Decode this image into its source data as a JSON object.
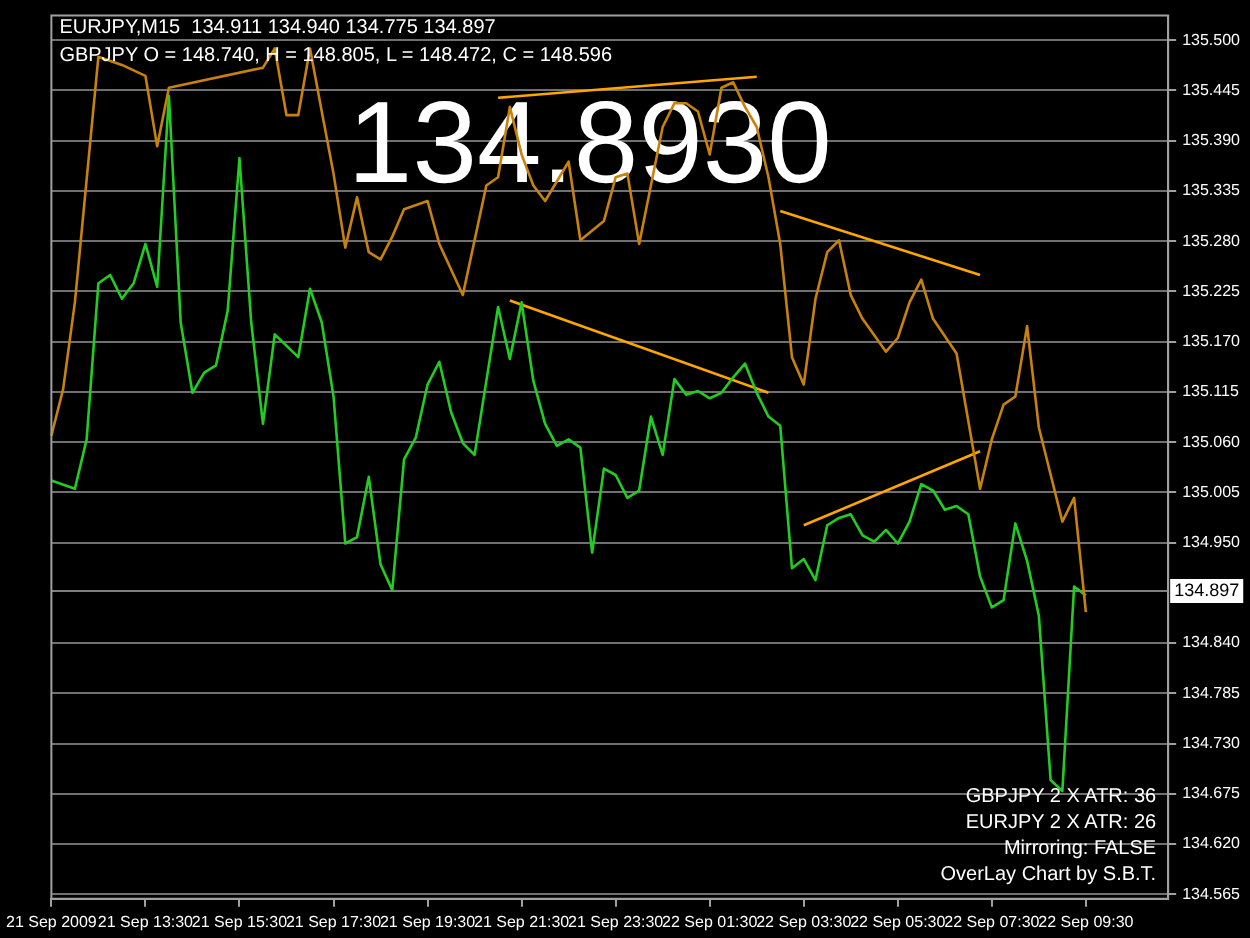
{
  "chart_data": {
    "type": "line",
    "ylim": [
      134.56,
      135.527
    ],
    "categories": [
      "21 Sep 2009",
      null,
      null,
      null,
      null,
      null,
      null,
      null,
      "21 Sep 13:30",
      null,
      null,
      null,
      null,
      null,
      null,
      null,
      "21 Sep 15:30",
      null,
      null,
      null,
      null,
      null,
      null,
      null,
      "21 Sep 17:30",
      null,
      null,
      null,
      null,
      null,
      null,
      null,
      "21 Sep 19:30",
      null,
      null,
      null,
      null,
      null,
      null,
      null,
      "21 Sep 21:30",
      null,
      null,
      null,
      null,
      null,
      null,
      null,
      "21 Sep 23:30",
      null,
      null,
      null,
      null,
      null,
      null,
      null,
      "22 Sep 01:30",
      null,
      null,
      null,
      null,
      null,
      null,
      null,
      "22 Sep 03:30",
      null,
      null,
      null,
      null,
      null,
      null,
      null,
      "22 Sep 05:30",
      null,
      null,
      null,
      null,
      null,
      null,
      null,
      "22 Sep 07:30",
      null,
      null,
      null,
      null,
      null,
      null,
      null,
      "22 Sep 09:30",
      null,
      null,
      null,
      null,
      null,
      null,
      null
    ],
    "yticks": [
      134.565,
      {
        "value": 134.62,
        "label": "134.620"
      },
      134.675,
      {
        "value": 134.73,
        "label": "134.730"
      },
      134.785,
      {
        "value": 134.84,
        "label": "134.840"
      },
      {
        "value": 134.95,
        "label": "134.950"
      },
      135.005,
      {
        "value": 135.06,
        "label": "135.060"
      },
      135.115,
      {
        "value": 135.17,
        "label": "135.170"
      },
      135.225,
      {
        "value": 135.28,
        "label": "135.280"
      },
      135.335,
      {
        "value": 135.39,
        "label": "135.390"
      },
      135.445,
      {
        "value": 135.5,
        "label": "135.500"
      }
    ],
    "grid": "y",
    "legend": false,
    "series": [
      {
        "color": "#c8820a",
        "values": [
          135.067,
          135.118,
          135.213,
          null,
          135.482,
          null,
          135.473,
          null,
          135.461,
          135.384,
          135.448,
          null,
          null,
          null,
          null,
          null,
          null,
          null,
          135.47,
          135.491,
          135.418,
          135.418,
          135.491,
          135.422,
          135.354,
          135.273,
          135.328,
          135.268,
          135.26,
          135.285,
          135.315,
          null,
          135.324,
          135.277,
          null,
          135.221,
          null,
          135.341,
          135.35,
          135.427,
          135.375,
          135.341,
          135.324,
          null,
          135.367,
          135.281,
          null,
          135.302,
          135.35,
          135.354,
          135.277,
          135.341,
          135.405,
          135.431,
          135.431,
          135.422,
          135.375,
          135.448,
          135.454,
          135.427,
          135.405,
          135.35,
          135.277,
          135.153,
          135.123,
          135.217,
          135.268,
          135.281,
          135.221,
          135.195,
          null,
          135.159,
          135.174,
          135.213,
          135.238,
          135.195,
          null,
          135.157,
          null,
          135.009,
          135.063,
          135.101,
          135.11,
          135.187,
          135.076,
          null,
          134.973,
          134.999,
          134.874,
          null,
          null,
          null,
          null,
          null,
          null,
          null
        ]
      },
      {
        "color": "#22cc22",
        "values": [
          135.018,
          null,
          135.009,
          135.063,
          135.234,
          135.243,
          135.217,
          135.234,
          135.277,
          135.23,
          135.439,
          135.191,
          135.114,
          135.136,
          135.144,
          135.204,
          135.371,
          135.191,
          135.08,
          135.178,
          null,
          135.153,
          135.228,
          135.191,
          135.11,
          134.949,
          134.956,
          135.022,
          134.926,
          134.898,
          135.041,
          135.065,
          135.123,
          135.148,
          135.093,
          135.059,
          135.046,
          135.127,
          135.208,
          135.151,
          135.213,
          135.127,
          135.08,
          135.056,
          135.063,
          135.054,
          134.939,
          135.031,
          135.024,
          134.999,
          135.007,
          135.088,
          135.046,
          135.129,
          135.112,
          135.116,
          135.108,
          135.114,
          135.131,
          135.146,
          135.114,
          135.088,
          135.078,
          134.922,
          134.932,
          134.909,
          134.969,
          134.977,
          134.981,
          134.958,
          134.951,
          134.964,
          134.949,
          134.973,
          135.014,
          135.007,
          134.986,
          134.99,
          134.981,
          134.913,
          134.879,
          134.887,
          134.971,
          134.93,
          134.87,
          134.69,
          134.678,
          134.902,
          134.892,
          null,
          null,
          null,
          null,
          null,
          null,
          null
        ]
      },
      {
        "type": "line",
        "color": "#ffa500",
        "values": [
          null,
          null,
          null,
          null,
          null,
          null,
          null,
          null,
          null,
          null,
          null,
          null,
          null,
          null,
          null,
          null,
          null,
          null,
          null,
          null,
          null,
          null,
          null,
          null,
          null,
          null,
          null,
          null,
          null,
          null,
          null,
          null,
          null,
          null,
          null,
          null,
          null,
          null,
          135.437,
          null,
          null,
          null,
          null,
          null,
          null,
          null,
          null,
          null,
          null,
          null,
          null,
          null,
          null,
          null,
          null,
          null,
          null,
          null,
          null,
          null,
          135.46,
          null,
          null,
          null,
          null,
          null,
          null,
          null,
          null,
          null,
          null,
          null,
          null,
          null,
          null,
          null,
          null,
          null,
          null,
          null,
          null,
          null,
          null,
          null,
          null,
          null,
          null,
          null,
          null,
          null,
          null,
          null,
          null,
          null,
          null,
          null
        ]
      },
      {
        "type": "line",
        "color": "#ffa500",
        "values": [
          null,
          null,
          null,
          null,
          null,
          null,
          null,
          null,
          null,
          null,
          null,
          null,
          null,
          null,
          null,
          null,
          null,
          null,
          null,
          null,
          null,
          null,
          null,
          null,
          null,
          null,
          null,
          null,
          null,
          null,
          null,
          null,
          null,
          null,
          null,
          null,
          null,
          null,
          null,
          null,
          null,
          null,
          null,
          null,
          null,
          null,
          null,
          null,
          null,
          null,
          null,
          null,
          null,
          null,
          null,
          null,
          null,
          null,
          null,
          null,
          null,
          null,
          135.313,
          null,
          null,
          null,
          null,
          null,
          null,
          null,
          null,
          null,
          null,
          null,
          null,
          null,
          null,
          null,
          null,
          135.243,
          null,
          null,
          null,
          null,
          null,
          null,
          null,
          null,
          null,
          null,
          null,
          null,
          null,
          null,
          null,
          null
        ]
      },
      {
        "type": "line",
        "color": "#ffa500",
        "values": [
          null,
          null,
          null,
          null,
          null,
          null,
          null,
          null,
          null,
          null,
          null,
          null,
          null,
          null,
          null,
          null,
          null,
          null,
          null,
          null,
          null,
          null,
          null,
          null,
          null,
          null,
          null,
          null,
          null,
          null,
          null,
          null,
          null,
          null,
          null,
          null,
          null,
          null,
          null,
          135.215,
          null,
          null,
          null,
          null,
          null,
          null,
          null,
          null,
          null,
          null,
          null,
          null,
          null,
          null,
          null,
          null,
          null,
          null,
          null,
          null,
          null,
          135.114,
          null,
          null,
          null,
          null,
          null,
          null,
          null,
          null,
          null,
          null,
          null,
          null,
          null,
          null,
          null,
          null,
          null,
          null,
          null,
          null,
          null,
          null,
          null,
          null,
          null,
          null,
          null,
          null,
          null,
          null,
          null,
          null,
          null,
          null
        ]
      },
      {
        "type": "line",
        "color": "#ffa500",
        "values": [
          null,
          null,
          null,
          null,
          null,
          null,
          null,
          null,
          null,
          null,
          null,
          null,
          null,
          null,
          null,
          null,
          null,
          null,
          null,
          null,
          null,
          null,
          null,
          null,
          null,
          null,
          null,
          null,
          null,
          null,
          null,
          null,
          null,
          null,
          null,
          null,
          null,
          null,
          null,
          null,
          null,
          null,
          null,
          null,
          null,
          null,
          null,
          null,
          null,
          null,
          null,
          null,
          null,
          null,
          null,
          null,
          null,
          null,
          null,
          null,
          null,
          null,
          null,
          null,
          134.969,
          null,
          null,
          null,
          null,
          null,
          null,
          null,
          null,
          null,
          null,
          null,
          null,
          null,
          null,
          135.05,
          null,
          null,
          null,
          null,
          null,
          null,
          null,
          null,
          null,
          null,
          null,
          null,
          null,
          null,
          null,
          null
        ]
      }
    ],
    "ref_lines": [
      {
        "axis": "y",
        "value": 134.897,
        "label": "134.897",
        "color": "#808080"
      }
    ],
    "annotations": [
      "EURJPY,M15  134.911 134.940 134.775 134.897",
      "GBPJPY O = 148.740, H = 148.805, L = 148.472, C = 148.596",
      "134.8930",
      "GBPJPY 2 X ATR: 36",
      "EURJPY 2 X ATR: 26",
      "Mirroring: FALSE",
      "OverLay Chart by S.B.T."
    ]
  }
}
